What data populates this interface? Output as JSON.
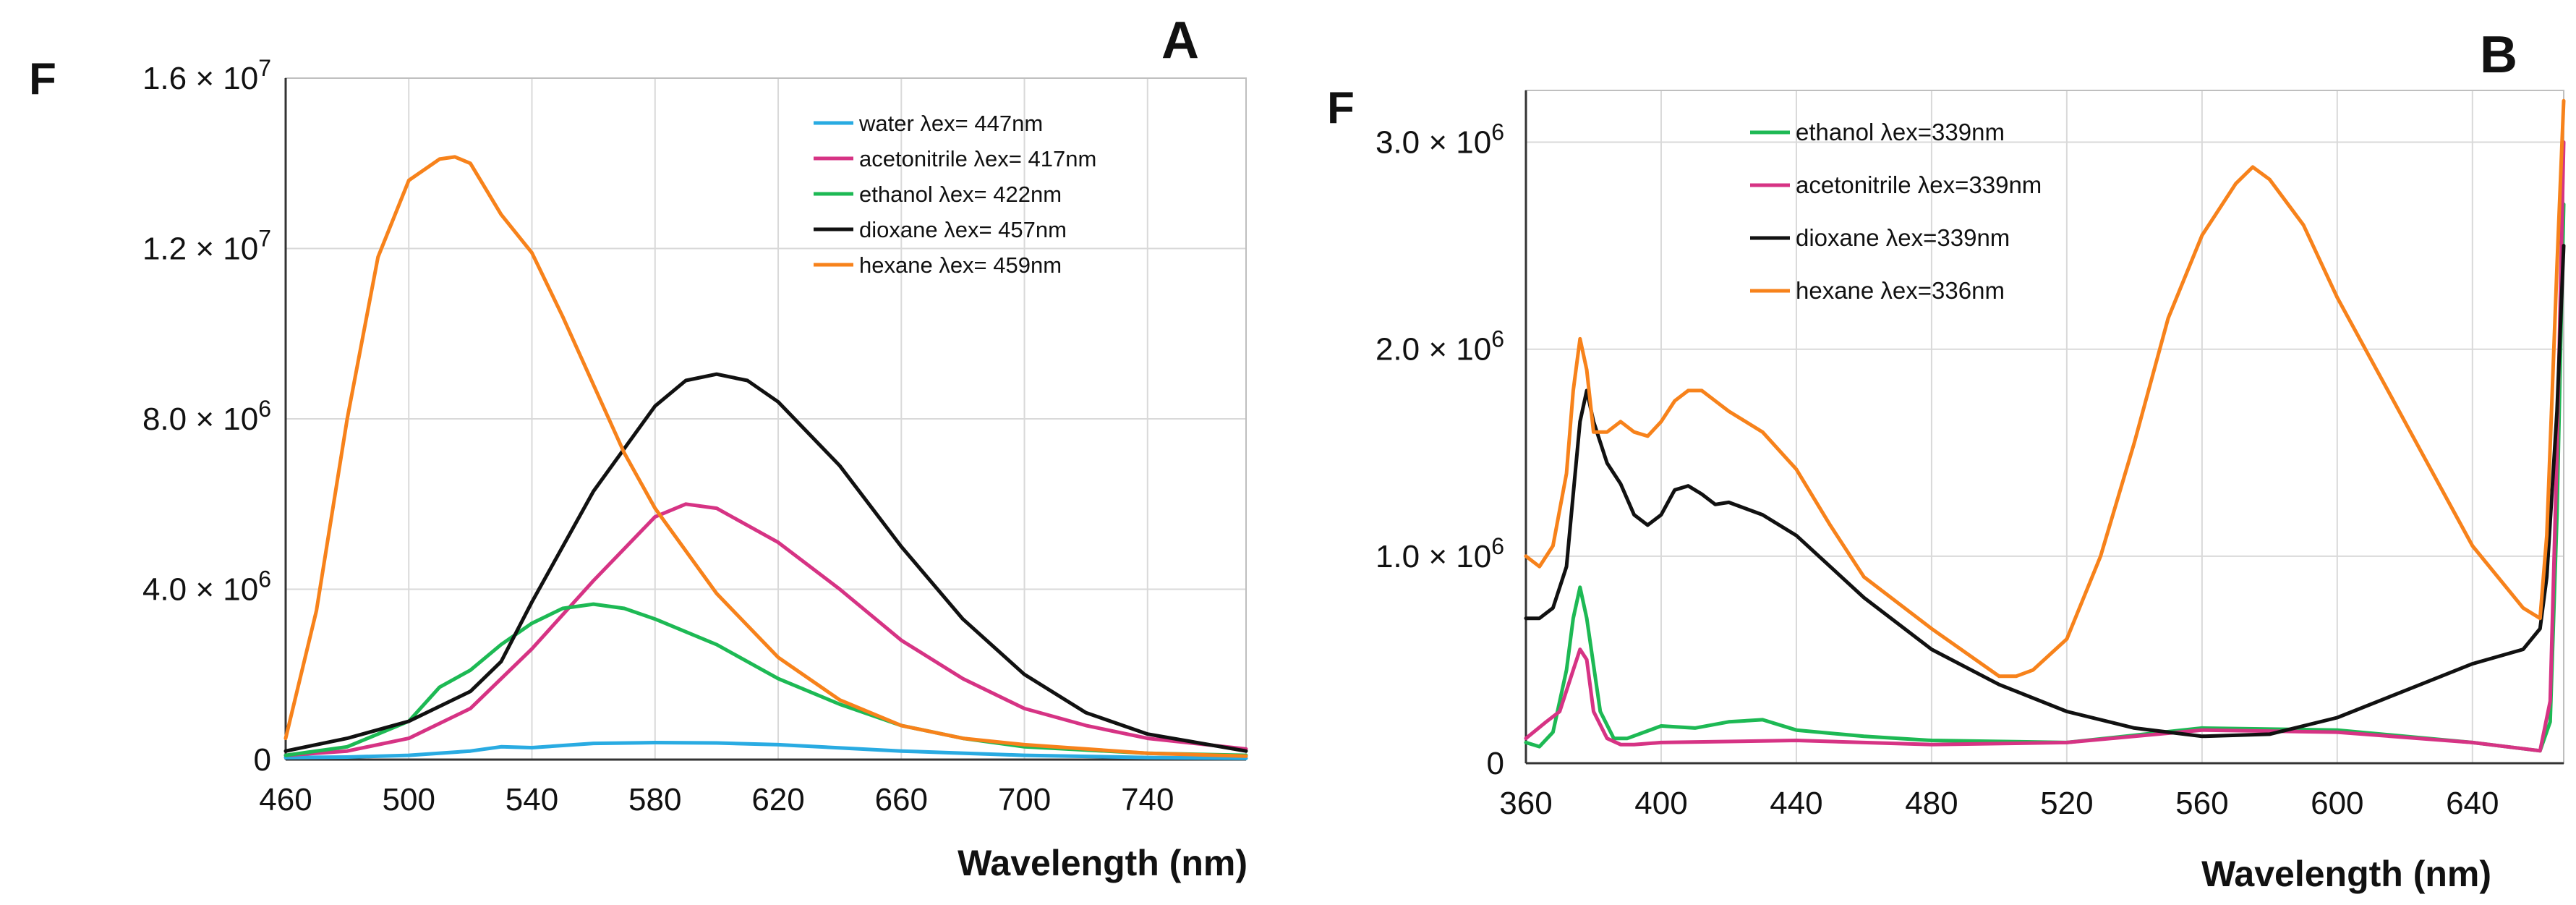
{
  "chart_data": [
    {
      "type": "line",
      "panel_label": "A",
      "y_symbol": "F",
      "xlabel": "Wavelength (nm)",
      "ylabel": "F",
      "xlim": [
        460,
        772
      ],
      "ylim": [
        0,
        16000000
      ],
      "grid": true,
      "legend_position": "top-right",
      "x_ticks": [
        {
          "value": 460,
          "label": "460"
        },
        {
          "value": 500,
          "label": "500"
        },
        {
          "value": 540,
          "label": "540"
        },
        {
          "value": 580,
          "label": "580"
        },
        {
          "value": 620,
          "label": "620"
        },
        {
          "value": 660,
          "label": "660"
        },
        {
          "value": 700,
          "label": "700"
        },
        {
          "value": 740,
          "label": "740"
        }
      ],
      "y_ticks": [
        {
          "value": 0,
          "mantissa": "0",
          "exponent": ""
        },
        {
          "value": 4000000,
          "mantissa": "4.0 × 10",
          "exponent": "6"
        },
        {
          "value": 8000000,
          "mantissa": "8.0 × 10",
          "exponent": "6"
        },
        {
          "value": 12000000,
          "mantissa": "1.2 × 10",
          "exponent": "7"
        },
        {
          "value": 16000000,
          "mantissa": "1.6 × 10",
          "exponent": "7"
        }
      ],
      "series": [
        {
          "name": "water  λex= 447nm",
          "color": "#29abe2",
          "x": [
            460,
            480,
            500,
            520,
            530,
            540,
            560,
            580,
            600,
            620,
            660,
            700,
            740,
            772
          ],
          "y": [
            50000,
            60000,
            100000,
            200000,
            300000,
            280000,
            380000,
            400000,
            390000,
            350000,
            200000,
            100000,
            50000,
            30000
          ]
        },
        {
          "name": "acetonitrile  λex= 417nm",
          "color": "#d63384",
          "x": [
            460,
            480,
            500,
            520,
            540,
            560,
            580,
            590,
            600,
            620,
            640,
            660,
            680,
            700,
            720,
            740,
            772
          ],
          "y": [
            100000,
            200000,
            500000,
            1200000,
            2600000,
            4200000,
            5700000,
            6000000,
            5900000,
            5100000,
            4000000,
            2800000,
            1900000,
            1200000,
            800000,
            500000,
            250000
          ]
        },
        {
          "name": "ethanol  λex= 422nm",
          "color": "#1db954",
          "x": [
            460,
            480,
            500,
            510,
            520,
            530,
            540,
            550,
            560,
            570,
            580,
            600,
            620,
            640,
            660,
            680,
            700,
            740,
            772
          ],
          "y": [
            100000,
            300000,
            900000,
            1700000,
            2100000,
            2700000,
            3200000,
            3550000,
            3650000,
            3550000,
            3300000,
            2700000,
            1900000,
            1300000,
            800000,
            500000,
            300000,
            150000,
            100000
          ]
        },
        {
          "name": "dioxane  λex= 457nm",
          "color": "#111111",
          "x": [
            460,
            480,
            500,
            520,
            530,
            540,
            560,
            580,
            590,
            600,
            610,
            620,
            640,
            660,
            680,
            700,
            720,
            740,
            772
          ],
          "y": [
            200000,
            500000,
            900000,
            1600000,
            2300000,
            3700000,
            6300000,
            8300000,
            8900000,
            9050000,
            8900000,
            8400000,
            6900000,
            5000000,
            3300000,
            2000000,
            1100000,
            600000,
            200000
          ]
        },
        {
          "name": "hexane  λex= 459nm",
          "color": "#f7821b",
          "x": [
            460,
            470,
            480,
            490,
            500,
            510,
            515,
            520,
            530,
            540,
            550,
            560,
            570,
            580,
            590,
            600,
            620,
            640,
            660,
            680,
            700,
            740,
            772
          ],
          "y": [
            500000,
            3500000,
            8000000,
            11800000,
            13600000,
            14100000,
            14150000,
            14000000,
            12800000,
            11900000,
            10400000,
            8800000,
            7200000,
            5900000,
            4900000,
            3900000,
            2400000,
            1400000,
            800000,
            500000,
            350000,
            150000,
            80000
          ]
        }
      ]
    },
    {
      "type": "line",
      "panel_label": "B",
      "y_symbol": "F",
      "xlabel": "Wavelength (nm)",
      "ylabel": "F",
      "xlim": [
        360,
        667
      ],
      "ylim": [
        0,
        3250000
      ],
      "grid": true,
      "legend_position": "top-left",
      "x_ticks": [
        {
          "value": 360,
          "label": "360"
        },
        {
          "value": 400,
          "label": "400"
        },
        {
          "value": 440,
          "label": "440"
        },
        {
          "value": 480,
          "label": "480"
        },
        {
          "value": 520,
          "label": "520"
        },
        {
          "value": 560,
          "label": "560"
        },
        {
          "value": 600,
          "label": "600"
        },
        {
          "value": 640,
          "label": "640"
        }
      ],
      "y_ticks": [
        {
          "value": 0,
          "mantissa": "0",
          "exponent": ""
        },
        {
          "value": 1000000,
          "mantissa": "1.0 × 10",
          "exponent": "6"
        },
        {
          "value": 2000000,
          "mantissa": "2.0 × 10",
          "exponent": "6"
        },
        {
          "value": 3000000,
          "mantissa": "3.0 × 10",
          "exponent": "6"
        }
      ],
      "series": [
        {
          "name": "ethanol  λex=339nm",
          "color": "#1db954",
          "x": [
            360,
            364,
            368,
            372,
            374,
            376,
            378,
            382,
            386,
            390,
            400,
            410,
            420,
            430,
            440,
            460,
            480,
            520,
            560,
            600,
            640,
            660,
            663,
            665,
            667
          ],
          "y": [
            100000,
            80000,
            150000,
            450000,
            700000,
            850000,
            700000,
            250000,
            120000,
            120000,
            180000,
            170000,
            200000,
            210000,
            160000,
            130000,
            110000,
            100000,
            170000,
            160000,
            100000,
            60000,
            200000,
            1200000,
            2700000
          ]
        },
        {
          "name": "acetonitrile  λex=339nm",
          "color": "#d63384",
          "x": [
            360,
            366,
            370,
            374,
            376,
            378,
            380,
            384,
            388,
            392,
            400,
            440,
            480,
            520,
            560,
            600,
            640,
            660,
            663,
            665,
            667
          ],
          "y": [
            120000,
            200000,
            250000,
            450000,
            550000,
            500000,
            250000,
            120000,
            90000,
            90000,
            100000,
            110000,
            90000,
            100000,
            160000,
            150000,
            100000,
            60000,
            300000,
            1500000,
            3000000
          ]
        },
        {
          "name": "dioxane  λex=339nm",
          "color": "#111111",
          "x": [
            360,
            364,
            368,
            372,
            374,
            376,
            378,
            380,
            384,
            388,
            392,
            396,
            400,
            404,
            408,
            412,
            416,
            420,
            430,
            440,
            450,
            460,
            480,
            500,
            520,
            540,
            560,
            580,
            600,
            620,
            640,
            655,
            660,
            662,
            665,
            667
          ],
          "y": [
            700000,
            700000,
            750000,
            950000,
            1300000,
            1650000,
            1800000,
            1650000,
            1450000,
            1350000,
            1200000,
            1150000,
            1200000,
            1320000,
            1340000,
            1300000,
            1250000,
            1260000,
            1200000,
            1100000,
            950000,
            800000,
            550000,
            380000,
            250000,
            170000,
            130000,
            140000,
            220000,
            350000,
            480000,
            550000,
            650000,
            900000,
            1700000,
            2500000
          ]
        },
        {
          "name": "hexane  λex=336nm",
          "color": "#f7821b",
          "x": [
            360,
            364,
            368,
            372,
            374,
            376,
            378,
            380,
            384,
            388,
            392,
            396,
            400,
            404,
            408,
            412,
            416,
            420,
            430,
            440,
            450,
            460,
            480,
            500,
            505,
            510,
            520,
            530,
            540,
            550,
            560,
            570,
            575,
            580,
            590,
            600,
            620,
            640,
            655,
            660,
            662,
            665,
            667
          ],
          "y": [
            1000000,
            950000,
            1050000,
            1400000,
            1800000,
            2050000,
            1900000,
            1600000,
            1600000,
            1650000,
            1600000,
            1580000,
            1650000,
            1750000,
            1800000,
            1800000,
            1750000,
            1700000,
            1600000,
            1420000,
            1150000,
            900000,
            650000,
            420000,
            420000,
            450000,
            600000,
            1000000,
            1550000,
            2150000,
            2550000,
            2800000,
            2880000,
            2820000,
            2600000,
            2250000,
            1650000,
            1050000,
            750000,
            700000,
            1100000,
            2400000,
            3200000
          ]
        }
      ]
    }
  ]
}
